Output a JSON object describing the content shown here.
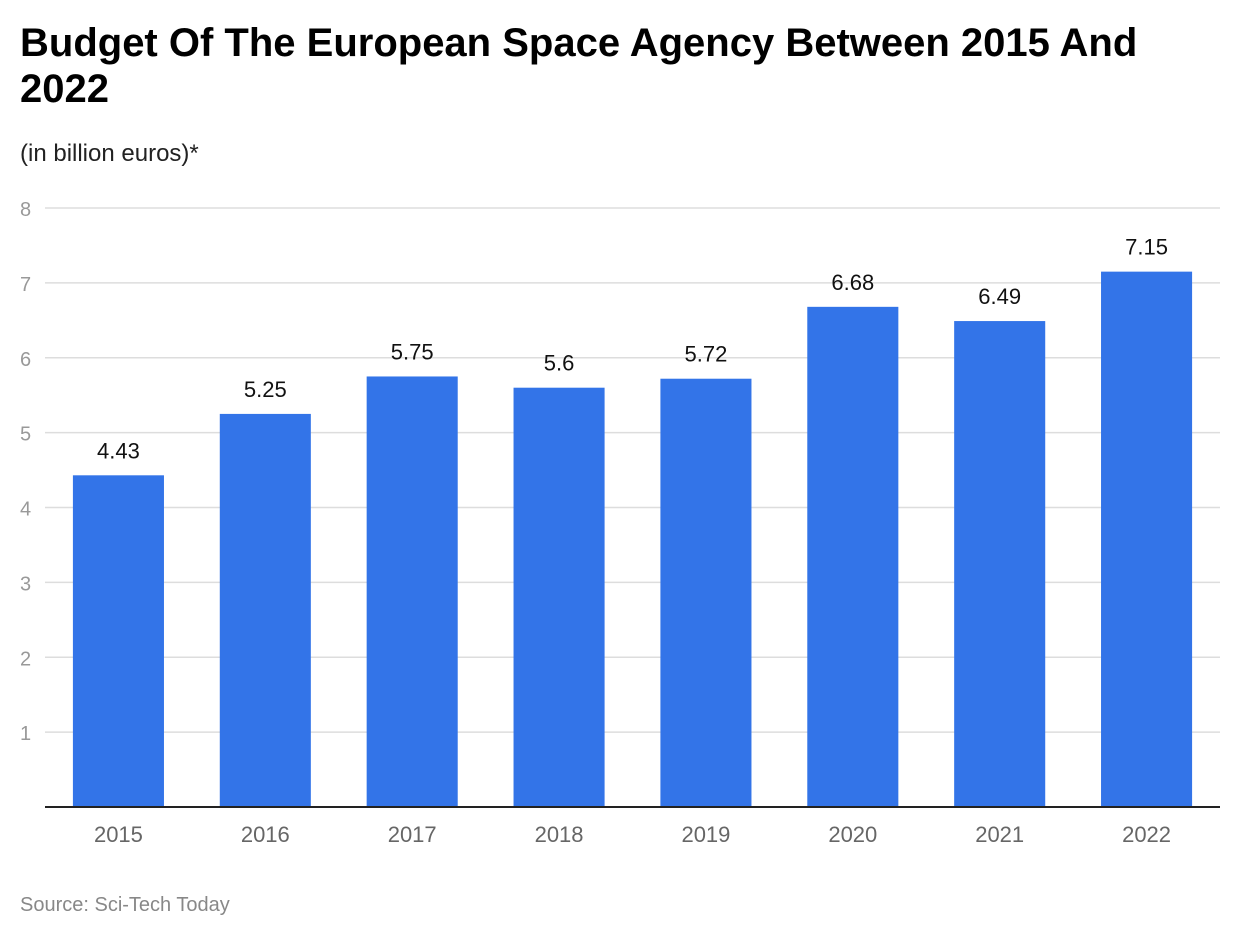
{
  "title": "Budget Of The European Space Agency Between 2015 And 2022",
  "subtitle": "(in billion euros)*",
  "source": "Source: Sci-Tech Today",
  "chart_data": {
    "type": "bar",
    "title": "Budget Of The European Space Agency Between 2015 And 2022",
    "subtitle": "(in billion euros)*",
    "xlabel": "",
    "ylabel": "",
    "categories": [
      "2015",
      "2016",
      "2017",
      "2018",
      "2019",
      "2020",
      "2021",
      "2022"
    ],
    "values": [
      4.43,
      5.25,
      5.75,
      5.6,
      5.72,
      6.68,
      6.49,
      7.15
    ],
    "data_labels": [
      "4.43",
      "5.25",
      "5.75",
      "5.6",
      "5.72",
      "6.68",
      "6.49",
      "7.15"
    ],
    "ylim": [
      0,
      8
    ],
    "yticks": [
      1,
      2,
      3,
      4,
      5,
      6,
      7,
      8
    ],
    "grid": true,
    "legend": "none",
    "colors": {
      "bar": "#3374E8",
      "grid": "#dddddd",
      "axis": "#222222",
      "tick_label": "#999999",
      "x_label": "#666666"
    }
  }
}
